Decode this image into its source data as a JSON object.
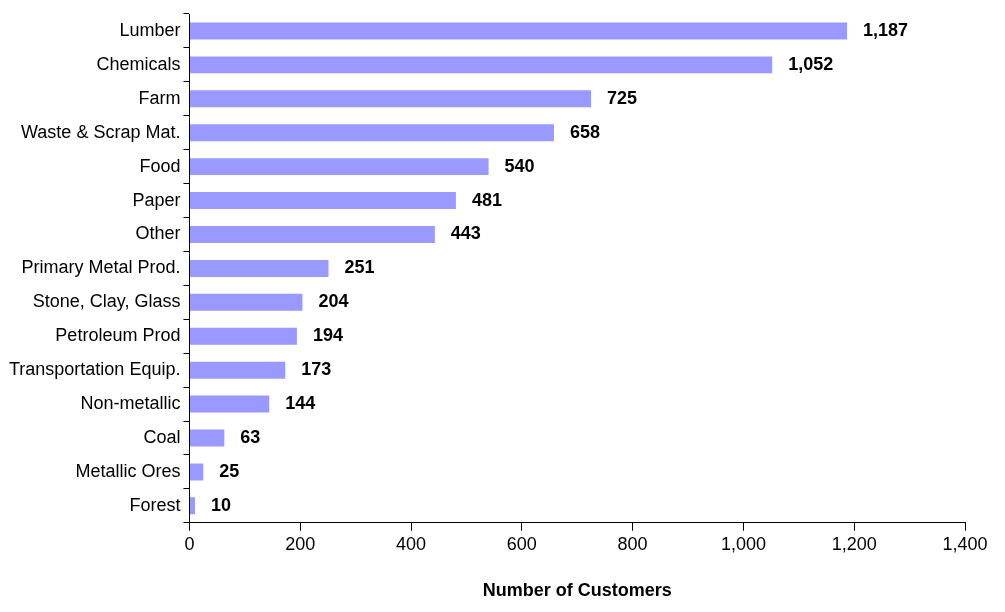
{
  "chart_data": {
    "type": "bar",
    "orientation": "horizontal",
    "xlabel": "Number of Customers",
    "categories": [
      "Lumber",
      "Chemicals",
      "Farm",
      "Waste & Scrap Mat.",
      "Food",
      "Paper",
      "Other",
      "Primary Metal Prod.",
      "Stone, Clay, Glass",
      "Petroleum Prod",
      "Transportation Equip.",
      "Non-metallic",
      "Coal",
      "Metallic Ores",
      "Forest"
    ],
    "values": [
      1187,
      1052,
      725,
      658,
      540,
      481,
      443,
      251,
      204,
      194,
      173,
      144,
      63,
      25,
      10
    ],
    "value_labels": [
      "1,187",
      "1,052",
      "725",
      "658",
      "540",
      "481",
      "443",
      "251",
      "204",
      "194",
      "173",
      "144",
      "63",
      "25",
      "10"
    ],
    "color": "#9999ff",
    "xlim": [
      0,
      1400
    ],
    "xticks": [
      0,
      200,
      400,
      600,
      800,
      {
        "value": 1000,
        "label": "1,000"
      },
      {
        "value": 1200,
        "label": "1,200"
      },
      {
        "value": 1400,
        "label": "1,400"
      }
    ],
    "grid": false,
    "legend": false
  }
}
